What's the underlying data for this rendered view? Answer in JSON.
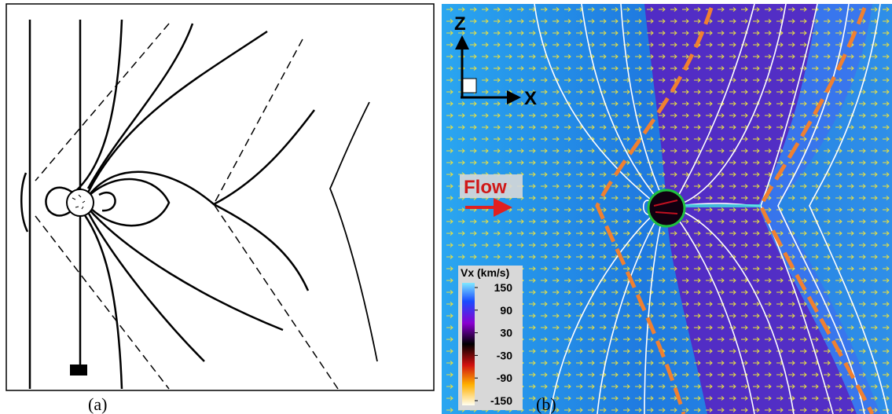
{
  "panel_a": {
    "label": "(a)"
  },
  "panel_b": {
    "label": "(b)",
    "axes": {
      "z": "Z",
      "x": "X"
    },
    "flow_label": "Flow",
    "colorbar": {
      "title": "Vx (km/s)",
      "ticks": [
        150,
        90,
        30,
        -30,
        -90,
        -150
      ]
    }
  }
}
